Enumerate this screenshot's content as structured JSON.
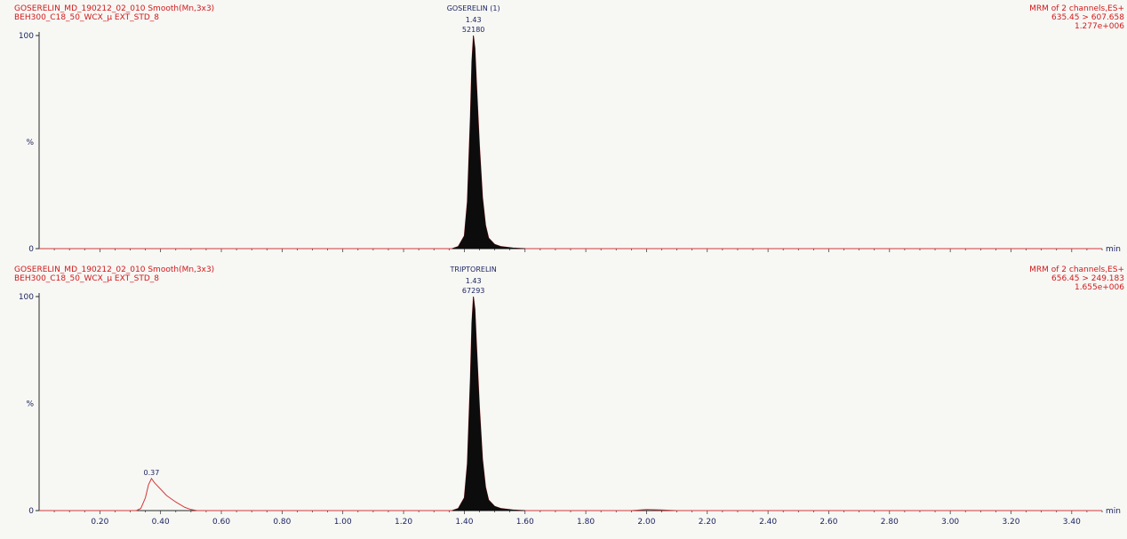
{
  "chart_data": [
    {
      "type": "line",
      "header": {
        "left_line1": "GOSERELIN_MD_190212_02_010 Smooth(Mn,3x3)",
        "left_line2": "BEH300_C18_50_WCX_µ EXT_STD_8",
        "compound": "GOSERELIN (1)",
        "right_line1": "MRM of 2 channels,ES+",
        "right_line2": "635.45 > 607.658",
        "right_line3": "1.277e+006"
      },
      "xlabel": "min",
      "ylabel": "%",
      "xlim": [
        0.0,
        3.5
      ],
      "ylim": [
        0,
        100
      ],
      "y_ticks": [
        "100",
        "0"
      ],
      "peaks": [
        {
          "rt": 1.43,
          "height": 100,
          "rt_label": "1.43",
          "area_label": "52180",
          "filled": true
        }
      ],
      "series": [
        {
          "x": [
            0.0,
            1.3,
            1.36,
            1.38,
            1.4,
            1.41,
            1.42,
            1.425,
            1.43,
            1.435,
            1.44,
            1.45,
            1.46,
            1.47,
            1.48,
            1.5,
            1.52,
            1.56,
            1.6,
            3.5
          ],
          "y": [
            0,
            0,
            0,
            1,
            6,
            22,
            62,
            88,
            100,
            94,
            78,
            48,
            24,
            11,
            5,
            2,
            1,
            0.3,
            0,
            0
          ]
        }
      ]
    },
    {
      "type": "line",
      "header": {
        "left_line1": "GOSERELIN_MD_190212_02_010 Smooth(Mn,3x3)",
        "left_line2": "BEH300_C18_50_WCX_µ EXT_STD_8",
        "compound": "TRIPTORELIN",
        "right_line1": "MRM of 2 channels,ES+",
        "right_line2": "656.45 > 249.183",
        "right_line3": "1.655e+006"
      },
      "xlabel": "min",
      "ylabel": "%",
      "xlim": [
        0.0,
        3.5
      ],
      "ylim": [
        0,
        100
      ],
      "y_ticks": [
        "100",
        "0"
      ],
      "x_ticks": [
        "0.20",
        "0.40",
        "0.60",
        "0.80",
        "1.00",
        "1.20",
        "1.40",
        "1.60",
        "1.80",
        "2.00",
        "2.20",
        "2.40",
        "2.60",
        "2.80",
        "3.00",
        "3.20",
        "3.40"
      ],
      "peaks": [
        {
          "rt": 1.43,
          "height": 100,
          "rt_label": "1.43",
          "area_label": "67293",
          "filled": true
        },
        {
          "rt": 0.37,
          "height": 15,
          "rt_label": "0.37",
          "filled": false
        }
      ],
      "series": [
        {
          "x": [
            0.0,
            0.32,
            0.335,
            0.35,
            0.36,
            0.37,
            0.38,
            0.4,
            0.42,
            0.45,
            0.48,
            0.5,
            0.52,
            1.3,
            1.36,
            1.38,
            1.4,
            1.41,
            1.42,
            1.425,
            1.43,
            1.435,
            1.44,
            1.45,
            1.46,
            1.47,
            1.48,
            1.5,
            1.52,
            1.56,
            1.6,
            1.95,
            2.0,
            2.05,
            2.1,
            3.5
          ],
          "y": [
            0,
            0,
            1,
            6,
            12,
            15,
            13,
            10,
            7,
            4,
            1.5,
            0.5,
            0,
            0,
            0,
            1,
            6,
            22,
            62,
            88,
            100,
            94,
            78,
            48,
            24,
            11,
            5,
            2,
            1,
            0.3,
            0,
            0,
            0.5,
            0.3,
            0,
            0
          ]
        }
      ]
    }
  ]
}
